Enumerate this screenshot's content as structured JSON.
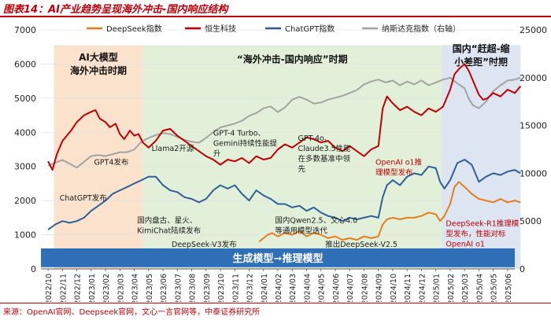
{
  "title": "图表14：AI产业趋势呈现海外冲击-国内响应结构",
  "source": "来源：OpenAI官网、Deepseek官网，文心一言官网等，中泰证券研究所",
  "colors": {
    "deepseek": "#e37e1d",
    "hsi_tech": "#c00000",
    "chatgpt": "#2e5f99",
    "nasdaq": "#a3a3a3",
    "phase1_bg": "#fbe2cd",
    "phase2_bg": "#e3f0d9",
    "phase3_bg": "#dde4f2",
    "banner": "#2f6fb7"
  },
  "chart_data": {
    "type": "line",
    "title": "",
    "xlabel": "",
    "ylabel": "",
    "ylim": [
      0,
      7000
    ],
    "y2lim": [
      0,
      25000
    ],
    "yticks": [
      0,
      1000,
      2000,
      3000,
      4000,
      5000,
      6000,
      7000
    ],
    "y2ticks": [
      0,
      5000,
      10000,
      15000,
      20000,
      25000
    ],
    "x_months": [
      "2022/10",
      "2022/11",
      "2022/12",
      "2023/01",
      "2023/02",
      "2023/03",
      "2023/04",
      "2023/05",
      "2023/06",
      "2023/07",
      "2023/08",
      "2023/09",
      "2023/10",
      "2023/11",
      "2023/12",
      "2024/01",
      "2024/02",
      "2024/03",
      "2024/04",
      "2024/05",
      "2024/06",
      "2024/07",
      "2024/08",
      "2024/09",
      "2024/10",
      "2024/11",
      "2024/12",
      "2025/01",
      "2025/02",
      "2025/03",
      "2025/04",
      "2025/05",
      "2025/06"
    ],
    "legend": {
      "deepseek": "DeepSeek指数",
      "hsi_tech": "恒生科技",
      "chatgpt": "ChatGPT指数",
      "nasdaq": "纳斯达克指数（右轴）"
    },
    "series": {
      "hsi_tech": [
        [
          0,
          3150
        ],
        [
          0.3,
          2900
        ],
        [
          0.6,
          3350
        ],
        [
          1,
          3750
        ],
        [
          1.3,
          3900
        ],
        [
          1.6,
          4050
        ],
        [
          2,
          4300
        ],
        [
          2.5,
          4500
        ],
        [
          3,
          4600
        ],
        [
          3.3,
          4650
        ],
        [
          3.6,
          4400
        ],
        [
          4,
          4300
        ],
        [
          4.3,
          4150
        ],
        [
          4.7,
          4250
        ],
        [
          5,
          3950
        ],
        [
          5.3,
          3800
        ],
        [
          5.7,
          4050
        ],
        [
          6,
          3900
        ],
        [
          6.3,
          3950
        ],
        [
          6.6,
          3700
        ],
        [
          7,
          3550
        ],
        [
          7.5,
          3750
        ],
        [
          8,
          4050
        ],
        [
          8.5,
          4100
        ],
        [
          9,
          3900
        ],
        [
          9.5,
          3750
        ],
        [
          10,
          3600
        ],
        [
          10.5,
          3450
        ],
        [
          11,
          3300
        ],
        [
          11.5,
          3200
        ],
        [
          12,
          3050
        ],
        [
          12.5,
          3200
        ],
        [
          13,
          3150
        ],
        [
          13.5,
          3250
        ],
        [
          14,
          3100
        ],
        [
          14.5,
          3300
        ],
        [
          15,
          3200
        ],
        [
          15.5,
          3250
        ],
        [
          16,
          3500
        ],
        [
          16.5,
          3650
        ],
        [
          17,
          3550
        ],
        [
          17.5,
          3700
        ],
        [
          18,
          3850
        ],
        [
          18.5,
          3800
        ],
        [
          19,
          3700
        ],
        [
          19.5,
          3750
        ],
        [
          20,
          3550
        ],
        [
          20.5,
          3450
        ],
        [
          21,
          3600
        ],
        [
          21.5,
          3450
        ],
        [
          22,
          3300
        ],
        [
          22.5,
          3500
        ],
        [
          23,
          3600
        ],
        [
          23.3,
          4700
        ],
        [
          23.6,
          5050
        ],
        [
          24,
          4850
        ],
        [
          24.5,
          4650
        ],
        [
          25,
          4750
        ],
        [
          25.5,
          4600
        ],
        [
          26,
          4500
        ],
        [
          26.5,
          4700
        ],
        [
          27,
          4600
        ],
        [
          27.5,
          4750
        ],
        [
          28,
          5250
        ],
        [
          28.3,
          5700
        ],
        [
          28.6,
          5850
        ],
        [
          29,
          6000
        ],
        [
          29.3,
          5800
        ],
        [
          29.6,
          5500
        ],
        [
          30,
          5100
        ],
        [
          30.3,
          4950
        ],
        [
          30.6,
          5000
        ],
        [
          31,
          5150
        ],
        [
          31.5,
          5050
        ],
        [
          32,
          5250
        ],
        [
          32.5,
          5150
        ],
        [
          32.9,
          5350
        ]
      ],
      "nasdaq": [
        [
          0,
          10800
        ],
        [
          0.5,
          11100
        ],
        [
          1,
          11400
        ],
        [
          1.5,
          11000
        ],
        [
          2,
          10600
        ],
        [
          2.5,
          11200
        ],
        [
          3,
          11800
        ],
        [
          3.5,
          11900
        ],
        [
          4,
          11800
        ],
        [
          4.5,
          12000
        ],
        [
          5,
          12200
        ],
        [
          5.5,
          12200
        ],
        [
          6,
          12500
        ],
        [
          6.5,
          13300
        ],
        [
          7,
          13700
        ],
        [
          7.5,
          14000
        ],
        [
          8,
          14200
        ],
        [
          8.5,
          14100
        ],
        [
          9,
          13800
        ],
        [
          9.5,
          13500
        ],
        [
          10,
          13300
        ],
        [
          10.5,
          13200
        ],
        [
          11,
          13700
        ],
        [
          11.5,
          14300
        ],
        [
          12,
          14800
        ],
        [
          12.5,
          15000
        ],
        [
          13,
          15200
        ],
        [
          13.5,
          15500
        ],
        [
          14,
          16000
        ],
        [
          14.5,
          16300
        ],
        [
          15,
          16800
        ],
        [
          15.5,
          17000
        ],
        [
          16,
          16400
        ],
        [
          16.5,
          16900
        ],
        [
          17,
          17700
        ],
        [
          17.5,
          18000
        ],
        [
          18,
          17700
        ],
        [
          18.5,
          17300
        ],
        [
          19,
          17400
        ],
        [
          19.5,
          17700
        ],
        [
          20,
          17900
        ],
        [
          20.5,
          18100
        ],
        [
          21,
          18400
        ],
        [
          21.5,
          18700
        ],
        [
          22,
          19300
        ],
        [
          22.5,
          19600
        ],
        [
          23,
          19800
        ],
        [
          23.5,
          19500
        ],
        [
          24,
          19700
        ],
        [
          24.5,
          19200
        ],
        [
          25,
          19600
        ],
        [
          25.5,
          19300
        ],
        [
          26,
          19700
        ],
        [
          26.5,
          19200
        ],
        [
          27,
          19500
        ],
        [
          27.5,
          19800
        ],
        [
          28,
          20000
        ],
        [
          28.5,
          19400
        ],
        [
          29,
          18900
        ],
        [
          29.3,
          17800
        ],
        [
          29.6,
          17100
        ],
        [
          30,
          16800
        ],
        [
          30.5,
          17500
        ],
        [
          31,
          18600
        ],
        [
          31.5,
          19200
        ],
        [
          32,
          19700
        ],
        [
          32.5,
          19800
        ],
        [
          32.9,
          20000
        ]
      ],
      "chatgpt": [
        [
          0,
          1150
        ],
        [
          0.5,
          1300
        ],
        [
          1,
          1400
        ],
        [
          1.5,
          1350
        ],
        [
          2,
          1400
        ],
        [
          2.5,
          1500
        ],
        [
          3,
          1700
        ],
        [
          3.5,
          1850
        ],
        [
          4,
          2000
        ],
        [
          4.5,
          2200
        ],
        [
          5,
          2300
        ],
        [
          5.5,
          2400
        ],
        [
          6,
          2500
        ],
        [
          6.5,
          2600
        ],
        [
          7,
          2700
        ],
        [
          7.5,
          2700
        ],
        [
          8,
          2450
        ],
        [
          8.5,
          2300
        ],
        [
          9,
          2250
        ],
        [
          9.5,
          2100
        ],
        [
          10,
          2050
        ],
        [
          10.5,
          1950
        ],
        [
          11,
          2050
        ],
        [
          11.5,
          2300
        ],
        [
          12,
          2450
        ],
        [
          12.5,
          2350
        ],
        [
          13,
          2450
        ],
        [
          13.5,
          2200
        ],
        [
          14,
          2000
        ],
        [
          14.5,
          2300
        ],
        [
          15,
          2150
        ],
        [
          15.5,
          2050
        ],
        [
          16,
          1900
        ],
        [
          16.5,
          1900
        ],
        [
          17,
          1800
        ],
        [
          17.5,
          1850
        ],
        [
          18,
          1700
        ],
        [
          18.5,
          1800
        ],
        [
          19,
          1650
        ],
        [
          19.5,
          1550
        ],
        [
          20,
          1500
        ],
        [
          20.5,
          1400
        ],
        [
          21,
          1500
        ],
        [
          21.5,
          1450
        ],
        [
          22,
          1500
        ],
        [
          22.5,
          1550
        ],
        [
          23,
          1500
        ],
        [
          23.3,
          2100
        ],
        [
          23.6,
          2450
        ],
        [
          24,
          2600
        ],
        [
          24.5,
          2450
        ],
        [
          25,
          2700
        ],
        [
          25.5,
          2800
        ],
        [
          26,
          2750
        ],
        [
          26.5,
          3000
        ],
        [
          27,
          2950
        ],
        [
          27.3,
          2550
        ],
        [
          27.6,
          2350
        ],
        [
          28,
          2600
        ],
        [
          28.5,
          3100
        ],
        [
          29,
          3200
        ],
        [
          29.5,
          3050
        ],
        [
          30,
          2550
        ],
        [
          30.5,
          2700
        ],
        [
          31,
          2800
        ],
        [
          31.5,
          2750
        ],
        [
          32,
          2850
        ],
        [
          32.5,
          2900
        ],
        [
          32.9,
          2800
        ]
      ],
      "deepseek": [
        [
          14.7,
          800
        ],
        [
          15,
          900
        ],
        [
          15.3,
          1000
        ],
        [
          15.6,
          1050
        ],
        [
          16,
          950
        ],
        [
          16.5,
          1050
        ],
        [
          17,
          1000
        ],
        [
          17.5,
          1100
        ],
        [
          18,
          950
        ],
        [
          18.5,
          1050
        ],
        [
          19,
          1000
        ],
        [
          19.5,
          900
        ],
        [
          20,
          950
        ],
        [
          20.5,
          850
        ],
        [
          21,
          900
        ],
        [
          21.5,
          850
        ],
        [
          22,
          950
        ],
        [
          22.5,
          900
        ],
        [
          23,
          950
        ],
        [
          23.3,
          1300
        ],
        [
          23.6,
          1450
        ],
        [
          24,
          1500
        ],
        [
          24.5,
          1450
        ],
        [
          25,
          1500
        ],
        [
          25.5,
          1500
        ],
        [
          26,
          1550
        ],
        [
          26.5,
          1650
        ],
        [
          27,
          1600
        ],
        [
          27.3,
          1400
        ],
        [
          27.6,
          1550
        ],
        [
          28,
          1900
        ],
        [
          28.3,
          2400
        ],
        [
          28.6,
          2550
        ],
        [
          29,
          2400
        ],
        [
          29.5,
          2200
        ],
        [
          30,
          2050
        ],
        [
          30.5,
          2000
        ],
        [
          31,
          1950
        ],
        [
          31.5,
          2050
        ],
        [
          32,
          1950
        ],
        [
          32.5,
          2000
        ],
        [
          32.9,
          1950
        ]
      ]
    },
    "phases": [
      {
        "from": 0.4,
        "to": 6.6,
        "label_lines": [
          "AI大模型",
          "海外冲击时期"
        ]
      },
      {
        "from": 6.6,
        "to": 27.4,
        "label_lines": [
          "“海外冲击-国内响应”时期"
        ]
      },
      {
        "from": 27.4,
        "to": 32.9,
        "label_lines": [
          "国内“赶超-缩",
          "小差距”时期"
        ]
      }
    ],
    "banner": "生成模型➞推理模型",
    "annotations": [
      {
        "lines": [
          "ChatGPT发布"
        ],
        "x": 0.8,
        "y": 2000,
        "anchor": "start",
        "color": "#1a1a1a"
      },
      {
        "lines": [
          "GPT4发布"
        ],
        "x": 3.2,
        "y": 3050,
        "anchor": "start",
        "color": "#1a1a1a"
      },
      {
        "lines": [
          "Llama2开源"
        ],
        "x": 7.2,
        "y": 3450,
        "anchor": "start",
        "color": "#1a1a1a"
      },
      {
        "lines": [
          "GPT-4 Turbo、",
          "Gemini持续性能提",
          "升"
        ],
        "x": 11.5,
        "y": 3900,
        "anchor": "start",
        "color": "#1a1a1a"
      },
      {
        "lines": [
          "GPT-4o、",
          "Claude3.5性能",
          "在多数基准中领",
          "先"
        ],
        "x": 17.4,
        "y": 3750,
        "anchor": "start",
        "color": "#1a1a1a"
      },
      {
        "lines": [
          "OpenAI o1推",
          "理模型发布"
        ],
        "x": 22.8,
        "y": 3050,
        "anchor": "start",
        "color": "#c00000"
      },
      {
        "lines": [
          "国内盘古、星火、",
          "KimiChat陆续发布"
        ],
        "x": 6.2,
        "y": 1350,
        "anchor": "start",
        "color": "#1a1a1a"
      },
      {
        "lines": [
          "国内Qwen2.5、文心4.0",
          "等通用模型迭代"
        ],
        "x": 15.8,
        "y": 1350,
        "anchor": "start",
        "color": "#1a1a1a"
      },
      {
        "lines": [
          "DeepSeek-V3发布"
        ],
        "x": 8.6,
        "y": 650,
        "anchor": "start",
        "color": "#1a1a1a"
      },
      {
        "lines": [
          "推出DeepSeek-V2.5"
        ],
        "x": 19.3,
        "y": 650,
        "anchor": "start",
        "color": "#1a1a1a"
      },
      {
        "lines": [
          "DeepSeek-R1推理模",
          "型发布，性能对标",
          "OpenAI o1"
        ],
        "x": 27.7,
        "y": 1250,
        "anchor": "start",
        "color": "#c00000"
      }
    ]
  }
}
